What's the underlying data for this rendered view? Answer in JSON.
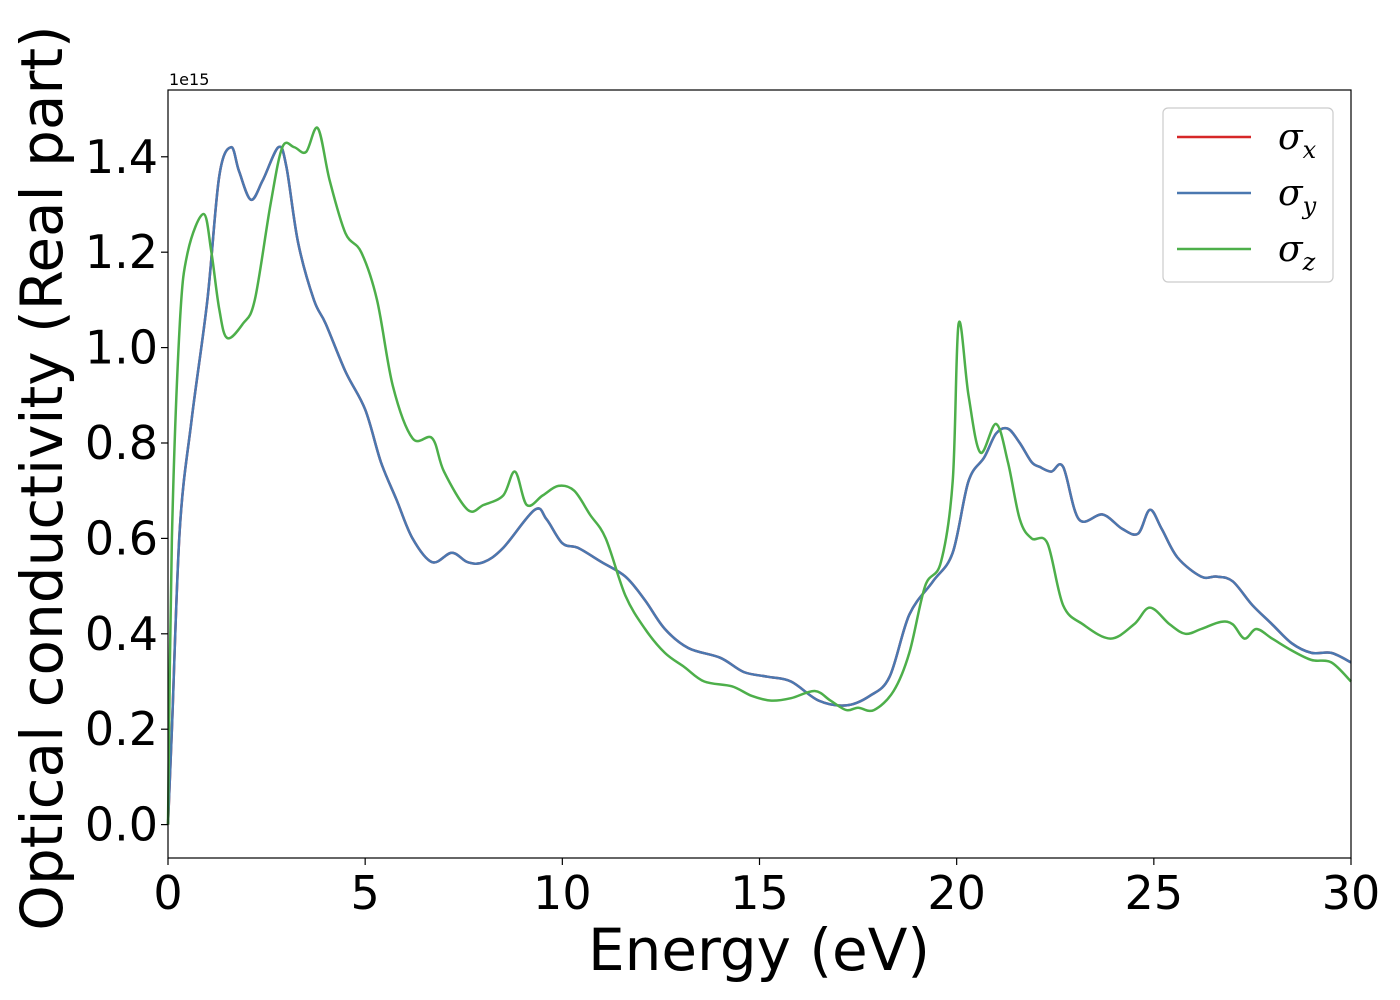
{
  "chart_data": {
    "type": "line",
    "title": "",
    "xlabel": "Energy (eV)",
    "ylabel": "Optical conductivity (Real part)",
    "y_multiplier_label": "1e15",
    "xlim": [
      0,
      30
    ],
    "ylim": [
      -0.07,
      1.54
    ],
    "xticks": [
      0,
      5,
      10,
      15,
      20,
      25,
      30
    ],
    "xtick_labels": [
      "0",
      "5",
      "10",
      "15",
      "20",
      "25",
      "30"
    ],
    "yticks": [
      0.0,
      0.2,
      0.4,
      0.6,
      0.8,
      1.0,
      1.2,
      1.4
    ],
    "ytick_labels": [
      "0.0",
      "0.2",
      "0.4",
      "0.6",
      "0.8",
      "1.0",
      "1.2",
      "1.4"
    ],
    "grid": false,
    "legend_position": "top-right",
    "series": [
      {
        "name": "σ",
        "subscript": "x",
        "color": "#d62728",
        "x": [
          0,
          0.1,
          0.3,
          0.6,
          1.0,
          1.3,
          1.6,
          1.8,
          2.1,
          2.4,
          2.8,
          3.0,
          3.3,
          3.7,
          4.0,
          4.5,
          5.0,
          5.4,
          5.8,
          6.2,
          6.7,
          7.2,
          7.6,
          8.0,
          8.5,
          9.3,
          9.6,
          10.0,
          10.4,
          11.0,
          11.6,
          12.1,
          12.6,
          13.2,
          14.0,
          14.6,
          15.2,
          15.8,
          16.5,
          17.2,
          17.8,
          18.3,
          18.8,
          19.4,
          19.9,
          20.3,
          20.7,
          21.0,
          21.3,
          21.6,
          21.9,
          22.1,
          22.4,
          22.7,
          23.1,
          23.7,
          24.2,
          24.6,
          24.9,
          25.2,
          25.6,
          26.2,
          26.6,
          27.0,
          27.5,
          28.0,
          28.5,
          29.0,
          29.5,
          30.0
        ],
        "y": [
          0.0,
          0.2,
          0.62,
          0.85,
          1.1,
          1.36,
          1.42,
          1.37,
          1.31,
          1.35,
          1.42,
          1.38,
          1.22,
          1.1,
          1.05,
          0.95,
          0.87,
          0.76,
          0.68,
          0.6,
          0.55,
          0.57,
          0.55,
          0.55,
          0.58,
          0.66,
          0.64,
          0.59,
          0.58,
          0.55,
          0.52,
          0.47,
          0.41,
          0.37,
          0.35,
          0.32,
          0.31,
          0.3,
          0.26,
          0.25,
          0.27,
          0.31,
          0.44,
          0.51,
          0.57,
          0.72,
          0.77,
          0.82,
          0.83,
          0.8,
          0.76,
          0.75,
          0.74,
          0.75,
          0.64,
          0.65,
          0.62,
          0.61,
          0.66,
          0.62,
          0.56,
          0.52,
          0.52,
          0.51,
          0.46,
          0.42,
          0.38,
          0.36,
          0.36,
          0.34
        ]
      },
      {
        "name": "σ",
        "subscript": "y",
        "color": "#4a78b0",
        "x": [
          0,
          0.1,
          0.3,
          0.6,
          1.0,
          1.3,
          1.6,
          1.8,
          2.1,
          2.4,
          2.8,
          3.0,
          3.3,
          3.7,
          4.0,
          4.5,
          5.0,
          5.4,
          5.8,
          6.2,
          6.7,
          7.2,
          7.6,
          8.0,
          8.5,
          9.3,
          9.6,
          10.0,
          10.4,
          11.0,
          11.6,
          12.1,
          12.6,
          13.2,
          14.0,
          14.6,
          15.2,
          15.8,
          16.5,
          17.2,
          17.8,
          18.3,
          18.8,
          19.4,
          19.9,
          20.3,
          20.7,
          21.0,
          21.3,
          21.6,
          21.9,
          22.1,
          22.4,
          22.7,
          23.1,
          23.7,
          24.2,
          24.6,
          24.9,
          25.2,
          25.6,
          26.2,
          26.6,
          27.0,
          27.5,
          28.0,
          28.5,
          29.0,
          29.5,
          30.0
        ],
        "y": [
          0.0,
          0.2,
          0.62,
          0.85,
          1.1,
          1.36,
          1.42,
          1.37,
          1.31,
          1.35,
          1.42,
          1.38,
          1.22,
          1.1,
          1.05,
          0.95,
          0.87,
          0.76,
          0.68,
          0.6,
          0.55,
          0.57,
          0.55,
          0.55,
          0.58,
          0.66,
          0.64,
          0.59,
          0.58,
          0.55,
          0.52,
          0.47,
          0.41,
          0.37,
          0.35,
          0.32,
          0.31,
          0.3,
          0.26,
          0.25,
          0.27,
          0.31,
          0.44,
          0.51,
          0.57,
          0.72,
          0.77,
          0.82,
          0.83,
          0.8,
          0.76,
          0.75,
          0.74,
          0.75,
          0.64,
          0.65,
          0.62,
          0.61,
          0.66,
          0.62,
          0.56,
          0.52,
          0.52,
          0.51,
          0.46,
          0.42,
          0.38,
          0.36,
          0.36,
          0.34
        ]
      },
      {
        "name": "σ",
        "subscript": "z",
        "color": "#4daf4a",
        "x": [
          0,
          0.1,
          0.3,
          0.5,
          0.9,
          1.1,
          1.3,
          1.5,
          1.9,
          2.2,
          2.6,
          2.9,
          3.2,
          3.5,
          3.8,
          4.1,
          4.5,
          4.9,
          5.3,
          5.7,
          6.2,
          6.7,
          7.0,
          7.6,
          8.0,
          8.5,
          8.8,
          9.1,
          9.5,
          9.9,
          10.3,
          10.7,
          11.1,
          11.6,
          12.1,
          12.6,
          13.1,
          13.6,
          14.3,
          14.8,
          15.3,
          15.8,
          16.4,
          16.8,
          17.2,
          17.5,
          17.9,
          18.4,
          18.8,
          19.2,
          19.6,
          19.9,
          20.05,
          20.3,
          20.6,
          21.0,
          21.3,
          21.6,
          21.9,
          22.3,
          22.7,
          23.2,
          23.9,
          24.5,
          24.9,
          25.4,
          25.8,
          26.2,
          26.7,
          27.0,
          27.3,
          27.6,
          28.0,
          28.5,
          29.0,
          29.5,
          30.0
        ],
        "y": [
          0.0,
          0.6,
          1.05,
          1.2,
          1.28,
          1.2,
          1.08,
          1.02,
          1.05,
          1.1,
          1.3,
          1.42,
          1.42,
          1.41,
          1.46,
          1.35,
          1.24,
          1.2,
          1.1,
          0.92,
          0.81,
          0.81,
          0.74,
          0.66,
          0.67,
          0.69,
          0.74,
          0.67,
          0.69,
          0.71,
          0.7,
          0.65,
          0.6,
          0.48,
          0.41,
          0.36,
          0.33,
          0.3,
          0.29,
          0.27,
          0.26,
          0.265,
          0.28,
          0.26,
          0.24,
          0.245,
          0.24,
          0.28,
          0.36,
          0.5,
          0.55,
          0.72,
          1.05,
          0.9,
          0.78,
          0.84,
          0.76,
          0.64,
          0.6,
          0.59,
          0.46,
          0.42,
          0.39,
          0.42,
          0.455,
          0.42,
          0.4,
          0.41,
          0.425,
          0.42,
          0.39,
          0.41,
          0.39,
          0.365,
          0.345,
          0.34,
          0.3
        ]
      }
    ]
  }
}
